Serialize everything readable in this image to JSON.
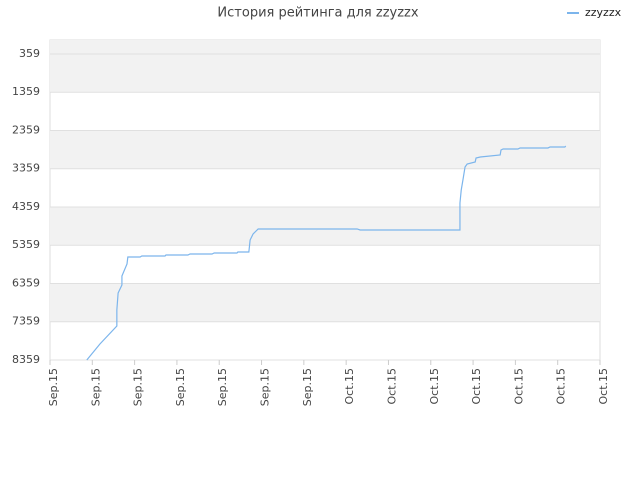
{
  "chart_data": {
    "type": "line",
    "title": "История рейтинга для zzyzzx",
    "xlim": [
      0,
      13
    ],
    "xticks": [
      {
        "value": 0,
        "label": "Sep.15"
      },
      {
        "value": 1,
        "label": "Sep.15"
      },
      {
        "value": 2,
        "label": "Sep.15"
      },
      {
        "value": 3,
        "label": "Sep.15"
      },
      {
        "value": 4,
        "label": "Sep.15"
      },
      {
        "value": 5,
        "label": "Sep.15"
      },
      {
        "value": 6,
        "label": "Sep.15"
      },
      {
        "value": 7,
        "label": "Oct.15"
      },
      {
        "value": 8,
        "label": "Oct.15"
      },
      {
        "value": 9,
        "label": "Oct.15"
      },
      {
        "value": 10,
        "label": "Oct.15"
      },
      {
        "value": 11,
        "label": "Oct.15"
      },
      {
        "value": 12,
        "label": "Oct.15"
      },
      {
        "value": 13,
        "label": "Oct.15"
      }
    ],
    "ylim": [
      8359,
      -7
    ],
    "yticks": [
      359,
      1359,
      2359,
      3359,
      4359,
      5359,
      6359,
      7359,
      8359
    ],
    "grid": true,
    "legend": "top-right",
    "series": [
      {
        "name": "zzyzzx",
        "color": "#7cb5ec",
        "x": [
          0.87,
          1.18,
          1.58,
          1.58,
          1.61,
          1.7,
          1.7,
          1.82,
          1.84,
          2.13,
          2.17,
          2.72,
          2.74,
          3.26,
          3.31,
          3.83,
          3.88,
          4.42,
          4.44,
          4.7,
          4.73,
          4.8,
          4.92,
          7.26,
          7.33,
          9.69,
          9.69,
          9.72,
          9.76,
          9.81,
          9.86,
          10.05,
          10.07,
          10.17,
          10.64,
          10.66,
          10.71,
          11.06,
          11.11,
          11.77,
          11.82,
          12.17,
          12.19
        ],
        "values": [
          8359,
          7941,
          7470,
          7052,
          6607,
          6398,
          6163,
          5849,
          5666,
          5666,
          5640,
          5640,
          5614,
          5614,
          5588,
          5588,
          5562,
          5562,
          5536,
          5536,
          5222,
          5065,
          4934,
          4934,
          4960,
          4960,
          4254,
          3915,
          3653,
          3313,
          3235,
          3182,
          3078,
          3052,
          2999,
          2869,
          2843,
          2843,
          2816,
          2816,
          2790,
          2790,
          2764
        ]
      }
    ]
  }
}
